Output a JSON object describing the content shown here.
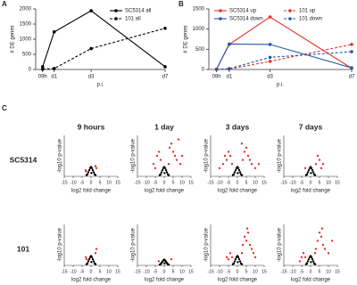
{
  "panel_labels": [
    "A",
    "B",
    "C"
  ],
  "column_titles": [
    "9 hours",
    "1 day",
    "3 days",
    "7 days"
  ],
  "row_labels": [
    "SC5314",
    "101"
  ],
  "chart_data": [
    {
      "type": "line",
      "ylabel": "# DE genes",
      "xlabel": "p.i.",
      "legend": "upper right",
      "x": [
        0.375,
        1,
        3,
        7
      ],
      "xlim": [
        0,
        7
      ],
      "xticks": [
        {
          "value": 0.375,
          "label": "09h"
        },
        {
          "value": 1,
          "label": "d1"
        },
        {
          "value": 3,
          "label": "d3"
        },
        {
          "value": 7,
          "label": "d7"
        }
      ],
      "ylim": [
        0,
        2000
      ],
      "yticks": [
        0,
        500,
        1000,
        1500,
        2000
      ],
      "series": [
        {
          "name": "SC5314 all",
          "color": "#000000",
          "line_style": "solid",
          "values": [
            90,
            1240,
            1940,
            90
          ]
        },
        {
          "name": "101 all",
          "color": "#000000",
          "line_style": "dashed",
          "values": [
            10,
            30,
            690,
            1360
          ]
        }
      ]
    },
    {
      "type": "line",
      "ylabel": "# DE genes",
      "xlabel": "p.i.",
      "legend": "upper left",
      "x": [
        0.375,
        1,
        3,
        7
      ],
      "xlim": [
        0,
        7
      ],
      "xticks": [
        {
          "value": 0.375,
          "label": "09h"
        },
        {
          "value": 1,
          "label": "d1"
        },
        {
          "value": 3,
          "label": "d3"
        },
        {
          "value": 7,
          "label": "d7"
        }
      ],
      "ylim": [
        0,
        1500
      ],
      "yticks": [
        0,
        500,
        1000,
        1500
      ],
      "series": [
        {
          "name": "SC5314 up",
          "color": "#e8312a",
          "line_style": "solid",
          "values": [
            5,
            620,
            1300,
            30
          ]
        },
        {
          "name": "SC5314 down",
          "color": "#2457a8",
          "line_style": "solid",
          "values": [
            5,
            630,
            620,
            40
          ]
        },
        {
          "name": "101 up",
          "color": "#e8312a",
          "line_style": "dashed",
          "values": [
            5,
            10,
            200,
            620
          ]
        },
        {
          "name": "101 down",
          "color": "#2457a8",
          "line_style": "dashed",
          "values": [
            5,
            20,
            300,
            440
          ]
        }
      ]
    },
    {
      "type": "scatter",
      "xlabel": "log2 fold change",
      "ylabel": "-log10 p-value",
      "xlim": [
        -15,
        15
      ],
      "xticks": [
        -15,
        -10,
        -5,
        0,
        5,
        10,
        15
      ],
      "ylim": [
        0,
        10
      ],
      "series": [
        {
          "color": "#000000",
          "x": [
            -2,
            -1.5,
            -1,
            -0.5,
            0,
            0.5,
            1,
            1.5,
            2,
            -2.5,
            2.5,
            0.2
          ],
          "y": [
            0.5,
            1,
            1.5,
            2,
            2.3,
            2,
            1.5,
            1,
            0.5,
            0.3,
            0.3,
            0.8
          ]
        },
        {
          "color": "#e8312a",
          "x": [
            -3,
            3,
            2.5,
            -2.8
          ],
          "y": [
            1.5,
            2,
            2.5,
            1.2
          ]
        }
      ]
    },
    {
      "type": "scatter",
      "xlabel": "log2 fold change",
      "ylabel": "-log10 p-value",
      "xlim": [
        -15,
        15
      ],
      "xticks": [
        -15,
        -10,
        -5,
        0,
        5,
        10,
        15
      ],
      "ylim": [
        0,
        10
      ],
      "series": [
        {
          "color": "#000000",
          "x": [
            -2,
            -1.5,
            -1,
            -0.5,
            0,
            0.5,
            1,
            1.5,
            2,
            -2.5,
            2.5,
            0.2
          ],
          "y": [
            0.5,
            1,
            1.5,
            2,
            2.3,
            2,
            1.5,
            1,
            0.5,
            0.3,
            0.3,
            0.8
          ]
        },
        {
          "color": "#e8312a",
          "x": [
            -6,
            -4,
            -3,
            -2,
            3,
            4,
            5,
            6,
            7,
            8,
            2.5,
            -5,
            9,
            10
          ],
          "y": [
            3,
            5,
            6,
            4,
            7,
            8,
            6,
            5,
            4,
            9,
            3,
            2,
            3,
            5
          ]
        }
      ]
    },
    {
      "type": "scatter",
      "xlabel": "log2 fold change",
      "ylabel": "-log10 p-value",
      "xlim": [
        -15,
        15
      ],
      "xticks": [
        -15,
        -10,
        -5,
        0,
        5,
        10,
        15
      ],
      "ylim": [
        0,
        10
      ],
      "series": [
        {
          "color": "#000000",
          "x": [
            -2,
            -1.5,
            -1,
            -0.5,
            0,
            0.5,
            1,
            1.5,
            2,
            -2.5,
            2.5,
            0.2
          ],
          "y": [
            0.5,
            1,
            1.5,
            2,
            2.3,
            2,
            1.5,
            1,
            0.5,
            0.3,
            0.3,
            0.8
          ]
        },
        {
          "color": "#e8312a",
          "x": [
            -10,
            -8,
            -6,
            -5,
            -4,
            -3,
            3,
            4,
            5,
            6,
            7,
            8,
            10,
            12,
            -7,
            2.5
          ],
          "y": [
            2,
            3,
            4,
            6,
            5,
            3,
            4,
            6,
            7,
            5,
            4,
            3,
            2,
            3,
            5,
            8
          ]
        }
      ]
    },
    {
      "type": "scatter",
      "xlabel": "log2 fold change",
      "ylabel": "-log10 p-value",
      "xlim": [
        -15,
        15
      ],
      "xticks": [
        -15,
        -10,
        -5,
        0,
        5,
        10,
        15
      ],
      "ylim": [
        0,
        10
      ],
      "series": [
        {
          "color": "#000000",
          "x": [
            -2,
            -1.5,
            -1,
            -0.5,
            0,
            0.5,
            1,
            1.5,
            2,
            -2.5,
            2.5,
            0.2
          ],
          "y": [
            0.5,
            1,
            1.5,
            2,
            2.3,
            2,
            1.5,
            1,
            0.5,
            0.3,
            0.3,
            0.8
          ]
        },
        {
          "color": "#e8312a",
          "x": [
            3,
            4,
            5,
            6,
            -3,
            7
          ],
          "y": [
            3,
            5,
            4,
            2,
            2,
            3
          ]
        }
      ]
    },
    {
      "type": "scatter",
      "xlabel": "log2 fold change",
      "ylabel": "-log10 p-value",
      "xlim": [
        -15,
        15
      ],
      "xticks": [
        -15,
        -10,
        -5,
        0,
        5,
        10,
        15
      ],
      "ylim": [
        0,
        10
      ],
      "series": [
        {
          "color": "#000000",
          "x": [
            -2,
            -1.5,
            -1,
            -0.5,
            0,
            0.5,
            1,
            1.5,
            2,
            -2.5,
            2.5,
            0.2
          ],
          "y": [
            0.5,
            1,
            1.5,
            2,
            2.3,
            2,
            1.5,
            1,
            0.5,
            0.3,
            0.3,
            0.8
          ]
        },
        {
          "color": "#e8312a",
          "x": [
            -3,
            3,
            2.5,
            -2.5
          ],
          "y": [
            2,
            4,
            3,
            1.5
          ]
        }
      ]
    },
    {
      "type": "scatter",
      "xlabel": "log2 fold change",
      "ylabel": "-log10 p-value",
      "xlim": [
        -15,
        15
      ],
      "xticks": [
        -15,
        -10,
        -5,
        0,
        5,
        10,
        15
      ],
      "ylim": [
        0,
        10
      ],
      "series": [
        {
          "color": "#000000",
          "x": [
            -2,
            -1.5,
            -1,
            -0.5,
            0,
            0.5,
            1,
            1.5,
            2,
            -2.5,
            2.5,
            0.2
          ],
          "y": [
            0.3,
            0.6,
            0.9,
            1.2,
            1.4,
            1.2,
            0.9,
            0.6,
            0.3,
            0.2,
            0.2,
            0.5
          ]
        },
        {
          "color": "#e8312a",
          "x": [
            -3,
            4
          ],
          "y": [
            1,
            1.5
          ]
        }
      ]
    },
    {
      "type": "scatter",
      "xlabel": "log2 fold change",
      "ylabel": "-log10 p-value",
      "xlim": [
        -15,
        15
      ],
      "xticks": [
        -15,
        -10,
        -5,
        0,
        5,
        10,
        15
      ],
      "ylim": [
        0,
        10
      ],
      "series": [
        {
          "color": "#000000",
          "x": [
            -2,
            -1.5,
            -1,
            -0.5,
            0,
            0.5,
            1,
            1.5,
            2,
            -2.5,
            2.5,
            0.2
          ],
          "y": [
            0.5,
            1,
            1.5,
            2,
            2.3,
            2,
            1.5,
            1,
            0.5,
            0.3,
            0.3,
            0.8
          ]
        },
        {
          "color": "#e8312a",
          "x": [
            -6,
            -4,
            -3,
            3,
            4,
            5,
            6,
            7,
            8,
            9,
            10,
            -5,
            2.5,
            5.5
          ],
          "y": [
            2,
            3,
            2,
            5,
            7,
            6,
            8,
            5,
            4,
            3,
            2,
            1.5,
            3,
            9
          ]
        }
      ]
    },
    {
      "type": "scatter",
      "xlabel": "log2 fold change",
      "ylabel": "-log10 p-value",
      "xlim": [
        -15,
        15
      ],
      "xticks": [
        -15,
        -10,
        -5,
        0,
        5,
        10,
        15
      ],
      "ylim": [
        0,
        10
      ],
      "series": [
        {
          "color": "#000000",
          "x": [
            -2,
            -1.5,
            -1,
            -0.5,
            0,
            0.5,
            1,
            1.5,
            2,
            -2.5,
            2.5,
            0.2
          ],
          "y": [
            0.5,
            1,
            1.5,
            2,
            2.3,
            2,
            1.5,
            1,
            0.5,
            0.3,
            0.3,
            0.8
          ]
        },
        {
          "color": "#e8312a",
          "x": [
            -5,
            -4,
            -3,
            3,
            4,
            5,
            6,
            7,
            8,
            10,
            12,
            -6,
            2.5,
            6.5
          ],
          "y": [
            2,
            3,
            2,
            4,
            6,
            8,
            7,
            5,
            4,
            3,
            6,
            1,
            3,
            9
          ]
        }
      ]
    }
  ]
}
